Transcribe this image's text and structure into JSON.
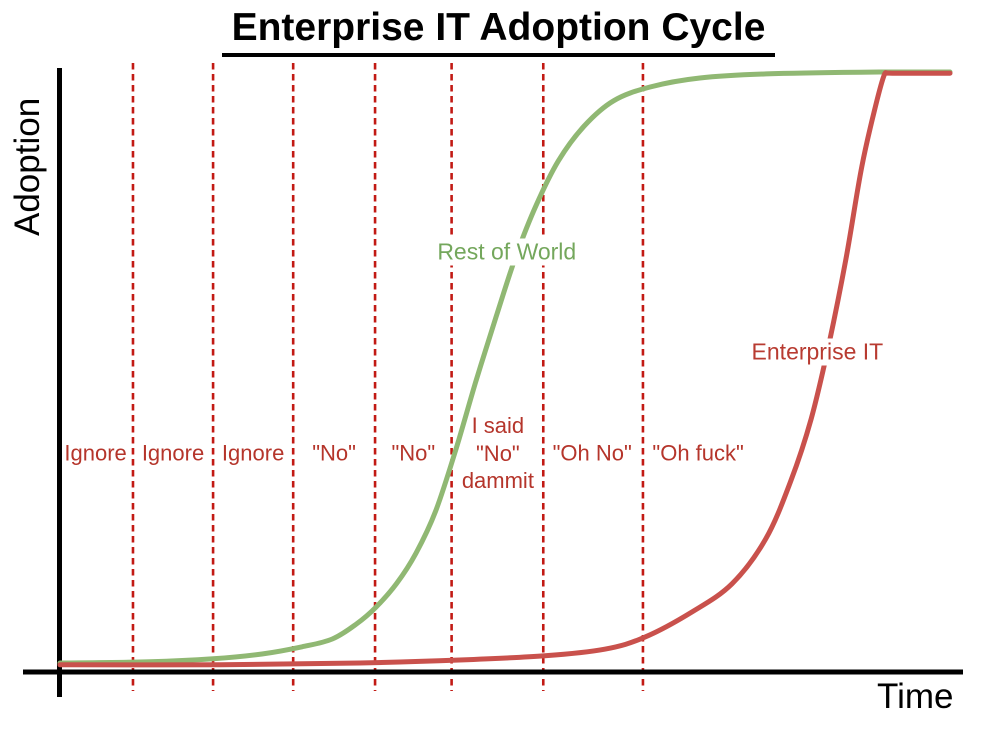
{
  "title": "Enterprise IT Adoption Cycle",
  "y_axis_label": "Adoption",
  "x_axis_label": "Time",
  "colors": {
    "axis_black": "#000000",
    "divider_red": "#c21a14",
    "zone_text_red": "#b5352b",
    "enterprise_curve_red": "#c9514c",
    "enterprise_text_red": "#b83b31",
    "world_curve_green": "#90b873",
    "world_text_green": "#74a75c",
    "background": "#ffffff"
  },
  "chart_data": {
    "type": "line",
    "title": "Enterprise IT Adoption Cycle",
    "xlabel": "Time",
    "ylabel": "Adoption",
    "xlim": [
      0,
      1
    ],
    "ylim": [
      0,
      1
    ],
    "grid": false,
    "axis_ticks": "none",
    "legend_position": "inline-curve-labels",
    "dividers_x": [
      0.082,
      0.172,
      0.262,
      0.354,
      0.44,
      0.543,
      0.655
    ],
    "zone_label_y": 0.365,
    "zones": [
      {
        "label_lines": [
          "Ignore"
        ],
        "x": 0.04
      },
      {
        "label_lines": [
          "Ignore"
        ],
        "x": 0.127
      },
      {
        "label_lines": [
          "Ignore"
        ],
        "x": 0.217
      },
      {
        "label_lines": [
          "\"No\""
        ],
        "x": 0.308
      },
      {
        "label_lines": [
          "\"No\""
        ],
        "x": 0.397
      },
      {
        "label_lines": [
          "I said",
          "\"No\"",
          "dammit"
        ],
        "x": 0.492
      },
      {
        "label_lines": [
          "\"Oh No\""
        ],
        "x": 0.598
      },
      {
        "label_lines": [
          "\"Oh fuck\""
        ],
        "x": 0.717
      }
    ],
    "series": [
      {
        "name": "Rest of World",
        "curve_color_key": "world_curve_green",
        "text_color_key": "world_text_green",
        "label_x": 0.502,
        "label_y": 0.7,
        "points": [
          [
            0.0,
            0.015
          ],
          [
            0.101,
            0.017
          ],
          [
            0.172,
            0.022
          ],
          [
            0.227,
            0.03
          ],
          [
            0.272,
            0.042
          ],
          [
            0.306,
            0.055
          ],
          [
            0.333,
            0.08
          ],
          [
            0.355,
            0.108
          ],
          [
            0.378,
            0.147
          ],
          [
            0.4,
            0.198
          ],
          [
            0.422,
            0.268
          ],
          [
            0.445,
            0.372
          ],
          [
            0.467,
            0.483
          ],
          [
            0.49,
            0.592
          ],
          [
            0.512,
            0.692
          ],
          [
            0.535,
            0.778
          ],
          [
            0.56,
            0.852
          ],
          [
            0.589,
            0.91
          ],
          [
            0.622,
            0.952
          ],
          [
            0.663,
            0.975
          ],
          [
            0.719,
            0.99
          ],
          [
            0.798,
            0.997
          ],
          [
            0.921,
            1.0
          ],
          [
            1.0,
            1.0
          ]
        ]
      },
      {
        "name": "Enterprise IT",
        "curve_color_key": "enterprise_curve_red",
        "text_color_key": "enterprise_text_red",
        "label_x": 0.851,
        "label_y": 0.533,
        "points": [
          [
            0.0,
            0.012
          ],
          [
            0.18,
            0.012
          ],
          [
            0.337,
            0.015
          ],
          [
            0.449,
            0.02
          ],
          [
            0.545,
            0.027
          ],
          [
            0.612,
            0.038
          ],
          [
            0.657,
            0.058
          ],
          [
            0.71,
            0.1
          ],
          [
            0.755,
            0.147
          ],
          [
            0.793,
            0.222
          ],
          [
            0.821,
            0.318
          ],
          [
            0.844,
            0.422
          ],
          [
            0.864,
            0.547
          ],
          [
            0.883,
            0.688
          ],
          [
            0.901,
            0.843
          ],
          [
            0.917,
            0.947
          ],
          [
            0.927,
            0.998
          ],
          [
            0.935,
            0.998
          ],
          [
            1.0,
            0.998
          ]
        ]
      }
    ]
  }
}
